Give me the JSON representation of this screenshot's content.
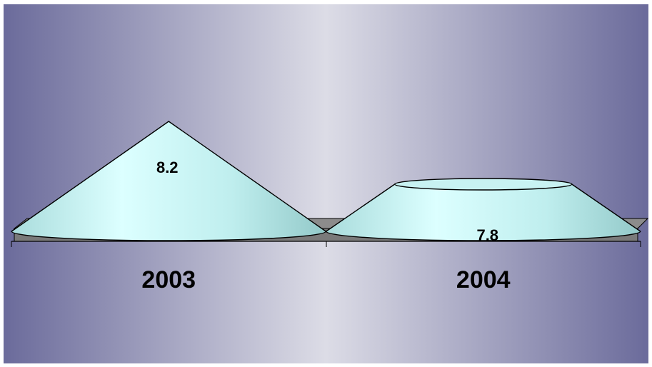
{
  "chart_data": {
    "type": "bar",
    "style": "3d-cone",
    "categories": [
      "2003",
      "2004"
    ],
    "values": [
      8.2,
      7.8
    ],
    "data_labels": [
      "8.2",
      "7.8"
    ],
    "title": "",
    "xlabel": "",
    "ylabel": "",
    "grid": false,
    "legend": "none",
    "colors": {
      "cone_fill": "#bfeeee",
      "cone_highlight": "#dcffff",
      "outline": "#000000",
      "floor": "#8c8c8c",
      "background_edge": "#6e6e9e",
      "background_center": "#dcdce6"
    }
  }
}
